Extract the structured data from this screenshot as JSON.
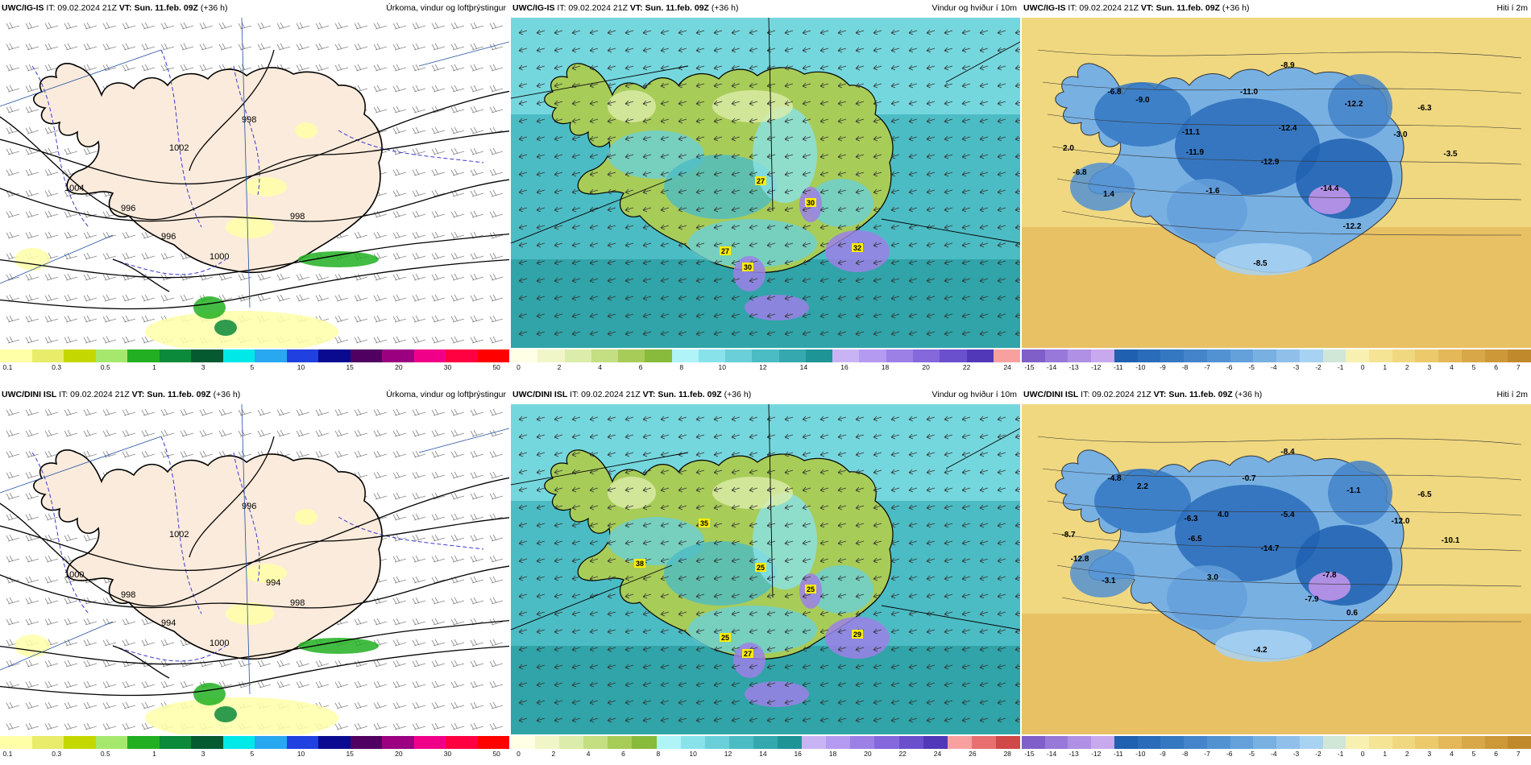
{
  "panels": [
    {
      "model": "UWC/IG-IS",
      "it": "IT: 09.02.2024 21Z",
      "vt_label": "VT:",
      "vt": "Sun. 11.feb. 09Z",
      "lead": "(+36 h)",
      "title": "Úrkoma, vindur og loftþrýstingur",
      "kind": "precip",
      "legend": {
        "colors": [
          "#ffffa8",
          "#e8ec6a",
          "#c4d800",
          "#a6e86e",
          "#22b022",
          "#0a8a3a",
          "#065a30",
          "#00e8e8",
          "#28a8f0",
          "#2040e0",
          "#0a0a90",
          "#500060",
          "#9a0080",
          "#f00088",
          "#ff0040",
          "#ff0000"
        ],
        "ticks": [
          "0.1",
          "0.3",
          "0.5",
          "1",
          "3",
          "5",
          "10",
          "15",
          "20",
          "30",
          "50"
        ]
      },
      "isobars": [
        "1004",
        "1002",
        "1000",
        "998",
        "998",
        "996",
        "996"
      ],
      "labels": []
    },
    {
      "model": "UWC/IG-IS",
      "it": "IT: 09.02.2024 21Z",
      "vt_label": "VT:",
      "vt": "Sun. 11.feb. 09Z",
      "lead": "(+36 h)",
      "title": "Vindur og hviður í 10m",
      "kind": "wind",
      "legend": {
        "colors": [
          "#ffffe6",
          "#f0f6c8",
          "#dcecaa",
          "#c4de82",
          "#a8cc58",
          "#88ba3c",
          "#b0f4f8",
          "#88e2ea",
          "#6acfd8",
          "#4cbcc4",
          "#34a8ae",
          "#1e9496",
          "#c8b4f4",
          "#b49af0",
          "#9c80e6",
          "#8468dc",
          "#6a50cc",
          "#5038b8",
          "#f8a0a0"
        ],
        "ticks": [
          "0",
          "2",
          "4",
          "6",
          "8",
          "10",
          "12",
          "14",
          "16",
          "18",
          "20",
          "22",
          "24"
        ]
      },
      "labels": [
        "27",
        "30",
        "32",
        "27",
        "30"
      ]
    },
    {
      "model": "UWC/IG-IS",
      "it": "IT: 09.02.2024 21Z",
      "vt_label": "VT:",
      "vt": "Sun. 11.feb. 09Z",
      "lead": "(+36 h)",
      "title": "Hiti í 2m",
      "kind": "temp",
      "legend": {
        "colors": [
          "#8060c8",
          "#9878d8",
          "#b090e4",
          "#c8a8ee",
          "#2060b0",
          "#2a6cba",
          "#3478c2",
          "#4484ca",
          "#5292d2",
          "#64a0da",
          "#78b0e2",
          "#90c0ea",
          "#a8d2f2",
          "#d0e6d6",
          "#f8f0b0",
          "#f4e494",
          "#f0d880",
          "#ecca6c",
          "#e4b858",
          "#d8a848",
          "#cc9838",
          "#c08a2c"
        ],
        "ticks": [
          "-15",
          "-14",
          "-13",
          "-12",
          "-11",
          "-10",
          "-9",
          "-8",
          "-7",
          "-6",
          "-5",
          "-4",
          "-3",
          "-2",
          "-1",
          "0",
          "1",
          "2",
          "3",
          "4",
          "5",
          "6",
          "7"
        ]
      },
      "labels": [
        "-8.9",
        "-6.8",
        "-9.0",
        "-11.0",
        "-12.2",
        "-6.3",
        "-11.1",
        "-12.4",
        "-3.0",
        "2.0",
        "-11.9",
        "-3.5",
        "-6.8",
        "-12.9",
        "-14.4",
        "1.4",
        "-1.6",
        "-12.2",
        "-8.5"
      ]
    },
    {
      "model": "UWC/DINI ISL",
      "it": "IT: 09.02.2024 21Z",
      "vt_label": "VT:",
      "vt": "Sun. 11.feb. 09Z",
      "lead": "(+36 h)",
      "title": "Úrkoma, vindur og loftþrýstingur",
      "kind": "precip",
      "legend": {
        "colors": [
          "#ffffa8",
          "#e8ec6a",
          "#c4d800",
          "#a6e86e",
          "#22b022",
          "#0a8a3a",
          "#065a30",
          "#00e8e8",
          "#28a8f0",
          "#2040e0",
          "#0a0a90",
          "#500060",
          "#9a0080",
          "#f00088",
          "#ff0040",
          "#ff0000"
        ],
        "ticks": [
          "0.1",
          "0.3",
          "0.5",
          "1",
          "3",
          "5",
          "10",
          "15",
          "20",
          "30",
          "50"
        ]
      },
      "isobars": [
        "1000",
        "1002",
        "1000",
        "998",
        "996",
        "998",
        "994",
        "994"
      ],
      "labels": []
    },
    {
      "model": "UWC/DINI ISL",
      "it": "IT: 09.02.2024 21Z",
      "vt_label": "VT:",
      "vt": "Sun. 11.feb. 09Z",
      "lead": "(+36 h)",
      "title": "Vindur og hviður í 10m",
      "kind": "wind",
      "legend": {
        "colors": [
          "#ffffe6",
          "#f0f6c8",
          "#dcecaa",
          "#c4de82",
          "#a8cc58",
          "#88ba3c",
          "#b0f4f8",
          "#88e2ea",
          "#6acfd8",
          "#4cbcc4",
          "#34a8ae",
          "#1e9496",
          "#c8b4f4",
          "#b49af0",
          "#9c80e6",
          "#8468dc",
          "#6a50cc",
          "#5038b8",
          "#f8a0a0",
          "#e87070",
          "#d04848"
        ],
        "ticks": [
          "0",
          "2",
          "4",
          "6",
          "8",
          "10",
          "12",
          "14",
          "16",
          "18",
          "20",
          "22",
          "24",
          "26",
          "28"
        ]
      },
      "labels": [
        "25",
        "25",
        "29",
        "25",
        "27",
        "38",
        "35"
      ]
    },
    {
      "model": "UWC/DINI ISL",
      "it": "IT: 09.02.2024 21Z",
      "vt_label": "VT:",
      "vt": "Sun. 11.feb. 09Z",
      "lead": "(+36 h)",
      "title": "Hiti í 2m",
      "kind": "temp",
      "legend": {
        "colors": [
          "#8060c8",
          "#9878d8",
          "#b090e4",
          "#c8a8ee",
          "#2060b0",
          "#2a6cba",
          "#3478c2",
          "#4484ca",
          "#5292d2",
          "#64a0da",
          "#78b0e2",
          "#90c0ea",
          "#a8d2f2",
          "#d0e6d6",
          "#f8f0b0",
          "#f4e494",
          "#f0d880",
          "#ecca6c",
          "#e4b858",
          "#d8a848",
          "#cc9838",
          "#c08a2c"
        ],
        "ticks": [
          "-15",
          "-14",
          "-13",
          "-12",
          "-11",
          "-10",
          "-9",
          "-8",
          "-7",
          "-6",
          "-5",
          "-4",
          "-3",
          "-2",
          "-1",
          "0",
          "1",
          "2",
          "3",
          "4",
          "5",
          "6",
          "7"
        ]
      },
      "labels": [
        "-8.4",
        "-4.8",
        "2.2",
        "-0.7",
        "-1.1",
        "-6.5",
        "-6.3",
        "-5.4",
        "-12.0",
        "-8.7",
        "-6.5",
        "-10.1",
        "-12.8",
        "-14.7",
        "-7.8",
        "-3.1",
        "3.0",
        "0.6",
        "-4.2",
        "4.0",
        "-7.9"
      ]
    }
  ]
}
